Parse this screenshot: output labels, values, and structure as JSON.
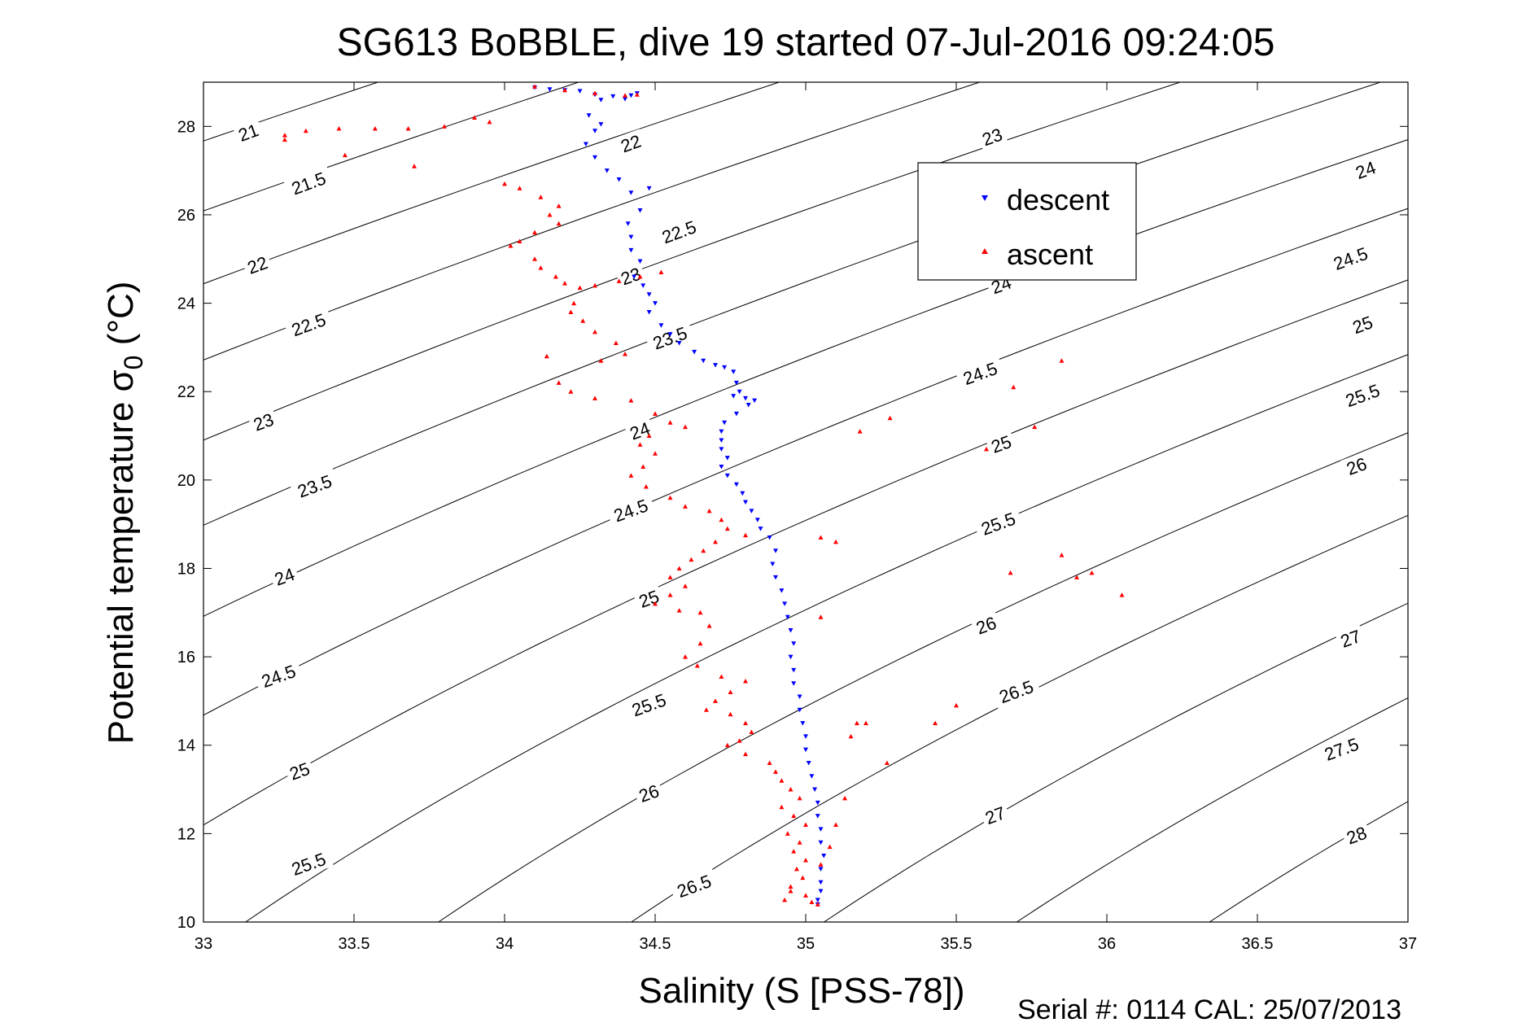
{
  "chart_data": {
    "type": "scatter",
    "title": "SG613 BoBBLE, dive 19 started 07-Jul-2016 09:24:05",
    "xlabel": "Salinity (S [PSS-78])",
    "ylabel": "Potential temperature σ",
    "ylabel_sub": "0",
    "ylabel_unit": " (°C)",
    "xlim": [
      33,
      37
    ],
    "ylim": [
      10,
      29
    ],
    "xticks": [
      33,
      33.5,
      34,
      34.5,
      35,
      35.5,
      36,
      36.5,
      37
    ],
    "xtick_labels": [
      "33",
      "33.5",
      "34",
      "34.5",
      "35",
      "35.5",
      "36",
      "36.5",
      "37"
    ],
    "yticks": [
      10,
      12,
      14,
      16,
      18,
      20,
      22,
      24,
      26,
      28
    ],
    "ytick_labels": [
      "10",
      "12",
      "14",
      "16",
      "18",
      "20",
      "22",
      "24",
      "26",
      "28"
    ],
    "grid": false,
    "legend_placement": "upper-right",
    "density_contours": {
      "levels": [
        21,
        21.5,
        22,
        22.5,
        23,
        23.5,
        24,
        24.5,
        25,
        25.5,
        26,
        26.5,
        27,
        27.5,
        28
      ],
      "labels": [
        {
          "text": "21",
          "s": 33.15,
          "t": 27.85
        },
        {
          "text": "21.5",
          "s": 33.35,
          "t": 26.7
        },
        {
          "text": "22",
          "s": 33.18,
          "t": 24.85
        },
        {
          "text": "22.5",
          "s": 33.35,
          "t": 23.5
        },
        {
          "text": "23",
          "s": 33.2,
          "t": 21.3
        },
        {
          "text": "23.5",
          "s": 33.37,
          "t": 19.85
        },
        {
          "text": "24",
          "s": 33.27,
          "t": 17.8
        },
        {
          "text": "24.5",
          "s": 33.25,
          "t": 15.55
        },
        {
          "text": "25",
          "s": 33.32,
          "t": 13.4
        },
        {
          "text": "25.5",
          "s": 33.35,
          "t": 11.3
        },
        {
          "text": "22",
          "s": 34.42,
          "t": 27.6
        },
        {
          "text": "22.5",
          "s": 34.58,
          "t": 25.6
        },
        {
          "text": "23",
          "s": 34.42,
          "t": 24.6
        },
        {
          "text": "23.5",
          "s": 34.55,
          "t": 23.2
        },
        {
          "text": "24",
          "s": 34.45,
          "t": 21.1
        },
        {
          "text": "24.5",
          "s": 34.42,
          "t": 19.3
        },
        {
          "text": "25",
          "s": 34.48,
          "t": 17.3
        },
        {
          "text": "25.5",
          "s": 34.48,
          "t": 14.9
        },
        {
          "text": "26",
          "s": 34.48,
          "t": 12.9
        },
        {
          "text": "26.5",
          "s": 34.63,
          "t": 10.8
        },
        {
          "text": "23",
          "s": 35.62,
          "t": 27.75
        },
        {
          "text": "24",
          "s": 35.65,
          "t": 24.4
        },
        {
          "text": "24.5",
          "s": 35.58,
          "t": 22.4
        },
        {
          "text": "25",
          "s": 35.65,
          "t": 20.8
        },
        {
          "text": "25.5",
          "s": 35.64,
          "t": 19.0
        },
        {
          "text": "26",
          "s": 35.6,
          "t": 16.7
        },
        {
          "text": "26.5",
          "s": 35.7,
          "t": 15.2
        },
        {
          "text": "27",
          "s": 35.63,
          "t": 12.4
        },
        {
          "text": "24",
          "s": 36.86,
          "t": 27.0
        },
        {
          "text": "24.5",
          "s": 36.81,
          "t": 25.0
        },
        {
          "text": "25",
          "s": 36.85,
          "t": 23.5
        },
        {
          "text": "25.5",
          "s": 36.85,
          "t": 21.9
        },
        {
          "text": "26",
          "s": 36.83,
          "t": 20.3
        },
        {
          "text": "27",
          "s": 36.81,
          "t": 16.4
        },
        {
          "text": "27.5",
          "s": 36.78,
          "t": 13.9
        },
        {
          "text": "28",
          "s": 36.83,
          "t": 11.95
        }
      ]
    },
    "series": [
      {
        "name": "descent",
        "color": "#0000ff",
        "marker": "triangle-down",
        "points": [
          [
            34.44,
            28.75
          ],
          [
            34.42,
            28.7
          ],
          [
            34.36,
            28.68
          ],
          [
            34.3,
            28.72
          ],
          [
            34.25,
            28.8
          ],
          [
            34.2,
            28.82
          ],
          [
            34.15,
            28.84
          ],
          [
            34.1,
            28.88
          ],
          [
            34.32,
            28.6
          ],
          [
            34.4,
            28.62
          ],
          [
            34.28,
            28.25
          ],
          [
            34.32,
            28.05
          ],
          [
            34.3,
            27.9
          ],
          [
            34.27,
            27.6
          ],
          [
            34.3,
            27.3
          ],
          [
            34.34,
            27.0
          ],
          [
            34.38,
            26.8
          ],
          [
            34.42,
            26.5
          ],
          [
            34.48,
            26.6
          ],
          [
            34.45,
            26.1
          ],
          [
            34.41,
            25.8
          ],
          [
            34.42,
            25.5
          ],
          [
            34.42,
            25.2
          ],
          [
            34.45,
            24.95
          ],
          [
            34.43,
            24.6
          ],
          [
            34.46,
            24.4
          ],
          [
            34.48,
            24.2
          ],
          [
            34.5,
            24.0
          ],
          [
            34.48,
            23.8
          ],
          [
            34.52,
            23.5
          ],
          [
            34.55,
            23.3
          ],
          [
            34.58,
            23.1
          ],
          [
            34.63,
            22.9
          ],
          [
            34.66,
            22.7
          ],
          [
            34.7,
            22.6
          ],
          [
            34.73,
            22.55
          ],
          [
            34.76,
            22.45
          ],
          [
            34.77,
            22.2
          ],
          [
            34.78,
            22.0
          ],
          [
            34.76,
            21.9
          ],
          [
            34.8,
            21.85
          ],
          [
            34.83,
            21.8
          ],
          [
            34.81,
            21.7
          ],
          [
            34.77,
            21.5
          ],
          [
            34.73,
            21.3
          ],
          [
            34.72,
            21.1
          ],
          [
            34.72,
            20.9
          ],
          [
            34.72,
            20.7
          ],
          [
            34.74,
            20.5
          ],
          [
            34.72,
            20.3
          ],
          [
            34.74,
            20.1
          ],
          [
            34.77,
            19.9
          ],
          [
            34.79,
            19.7
          ],
          [
            34.8,
            19.5
          ],
          [
            34.82,
            19.3
          ],
          [
            34.84,
            19.1
          ],
          [
            34.85,
            18.9
          ],
          [
            34.88,
            18.7
          ],
          [
            34.9,
            18.4
          ],
          [
            34.89,
            18.1
          ],
          [
            34.9,
            17.8
          ],
          [
            34.92,
            17.5
          ],
          [
            34.93,
            17.2
          ],
          [
            34.94,
            16.9
          ],
          [
            34.95,
            16.6
          ],
          [
            34.96,
            16.3
          ],
          [
            34.95,
            16.0
          ],
          [
            34.96,
            15.7
          ],
          [
            34.96,
            15.4
          ],
          [
            34.98,
            15.1
          ],
          [
            34.98,
            14.8
          ],
          [
            34.99,
            14.5
          ],
          [
            35.0,
            14.2
          ],
          [
            35.0,
            13.9
          ],
          [
            35.01,
            13.6
          ],
          [
            35.02,
            13.3
          ],
          [
            35.03,
            13.0
          ],
          [
            35.04,
            12.7
          ],
          [
            35.04,
            12.4
          ],
          [
            35.05,
            12.1
          ],
          [
            35.05,
            11.8
          ],
          [
            35.06,
            11.5
          ],
          [
            35.05,
            11.2
          ],
          [
            35.05,
            10.9
          ],
          [
            35.05,
            10.7
          ],
          [
            35.04,
            10.5
          ],
          [
            35.04,
            10.4
          ]
        ]
      },
      {
        "name": "ascent",
        "color": "#ff0000",
        "marker": "triangle-up",
        "points": [
          [
            34.1,
            28.9
          ],
          [
            34.2,
            28.82
          ],
          [
            34.3,
            28.75
          ],
          [
            34.4,
            28.7
          ],
          [
            34.44,
            28.72
          ],
          [
            33.9,
            28.2
          ],
          [
            33.95,
            28.1
          ],
          [
            33.8,
            28.0
          ],
          [
            33.68,
            27.95
          ],
          [
            33.57,
            27.95
          ],
          [
            33.45,
            27.95
          ],
          [
            33.34,
            27.9
          ],
          [
            33.27,
            27.8
          ],
          [
            33.27,
            27.7
          ],
          [
            33.47,
            27.35
          ],
          [
            33.7,
            27.1
          ],
          [
            34.0,
            26.7
          ],
          [
            34.05,
            26.6
          ],
          [
            34.12,
            26.4
          ],
          [
            34.18,
            26.2
          ],
          [
            34.15,
            26.0
          ],
          [
            34.18,
            25.8
          ],
          [
            34.1,
            25.6
          ],
          [
            34.05,
            25.4
          ],
          [
            34.02,
            25.3
          ],
          [
            34.1,
            25.0
          ],
          [
            34.12,
            24.8
          ],
          [
            34.17,
            24.6
          ],
          [
            34.2,
            24.45
          ],
          [
            34.25,
            24.35
          ],
          [
            34.3,
            24.4
          ],
          [
            34.38,
            24.5
          ],
          [
            34.45,
            24.6
          ],
          [
            34.52,
            24.7
          ],
          [
            34.23,
            24.0
          ],
          [
            34.22,
            23.8
          ],
          [
            34.26,
            23.6
          ],
          [
            34.3,
            23.35
          ],
          [
            34.37,
            23.1
          ],
          [
            34.4,
            22.85
          ],
          [
            34.32,
            22.7
          ],
          [
            34.14,
            22.8
          ],
          [
            34.18,
            22.2
          ],
          [
            34.22,
            22.0
          ],
          [
            34.3,
            21.85
          ],
          [
            34.42,
            21.8
          ],
          [
            34.5,
            21.5
          ],
          [
            34.55,
            21.3
          ],
          [
            34.6,
            21.2
          ],
          [
            34.48,
            21.0
          ],
          [
            34.45,
            20.8
          ],
          [
            34.5,
            20.6
          ],
          [
            34.46,
            20.3
          ],
          [
            34.42,
            20.1
          ],
          [
            34.47,
            19.85
          ],
          [
            34.55,
            19.6
          ],
          [
            34.6,
            19.4
          ],
          [
            34.68,
            19.3
          ],
          [
            34.72,
            19.1
          ],
          [
            34.74,
            18.9
          ],
          [
            34.8,
            18.75
          ],
          [
            34.7,
            18.6
          ],
          [
            34.66,
            18.4
          ],
          [
            34.62,
            18.2
          ],
          [
            34.58,
            18.0
          ],
          [
            34.55,
            17.8
          ],
          [
            34.6,
            17.6
          ],
          [
            34.55,
            17.4
          ],
          [
            34.5,
            17.2
          ],
          [
            34.58,
            17.05
          ],
          [
            34.65,
            17.0
          ],
          [
            34.68,
            16.7
          ],
          [
            34.65,
            16.3
          ],
          [
            34.6,
            16.0
          ],
          [
            34.64,
            15.8
          ],
          [
            34.72,
            15.55
          ],
          [
            34.8,
            15.45
          ],
          [
            34.75,
            15.2
          ],
          [
            34.7,
            15.0
          ],
          [
            34.67,
            14.8
          ],
          [
            34.75,
            14.7
          ],
          [
            34.8,
            14.5
          ],
          [
            34.82,
            14.3
          ],
          [
            34.78,
            14.1
          ],
          [
            34.74,
            14.0
          ],
          [
            34.8,
            13.8
          ],
          [
            34.88,
            13.6
          ],
          [
            34.9,
            13.4
          ],
          [
            34.92,
            13.2
          ],
          [
            34.95,
            13.0
          ],
          [
            34.98,
            12.8
          ],
          [
            34.92,
            12.6
          ],
          [
            34.96,
            12.4
          ],
          [
            35.0,
            12.2
          ],
          [
            34.94,
            12.0
          ],
          [
            34.98,
            11.8
          ],
          [
            34.96,
            11.6
          ],
          [
            35.0,
            11.4
          ],
          [
            34.97,
            11.2
          ],
          [
            34.99,
            11.0
          ],
          [
            34.95,
            10.8
          ],
          [
            35.0,
            10.6
          ],
          [
            35.02,
            10.45
          ],
          [
            35.04,
            10.4
          ],
          [
            34.93,
            10.5
          ],
          [
            34.95,
            10.7
          ],
          [
            35.05,
            11.3
          ],
          [
            35.08,
            11.7
          ],
          [
            35.1,
            12.2
          ],
          [
            35.13,
            12.8
          ],
          [
            35.17,
            14.5
          ],
          [
            35.2,
            14.5
          ],
          [
            35.27,
            13.6
          ],
          [
            35.15,
            14.2
          ],
          [
            35.5,
            14.9
          ],
          [
            35.43,
            14.5
          ],
          [
            35.69,
            22.1
          ],
          [
            35.76,
            21.2
          ],
          [
            35.85,
            22.7
          ],
          [
            35.6,
            20.7
          ],
          [
            35.85,
            18.3
          ],
          [
            35.95,
            17.9
          ],
          [
            35.68,
            17.9
          ],
          [
            35.05,
            16.9
          ],
          [
            35.1,
            18.6
          ],
          [
            35.05,
            18.7
          ],
          [
            35.9,
            17.8
          ],
          [
            36.05,
            17.4
          ],
          [
            35.28,
            21.4
          ],
          [
            35.18,
            21.1
          ]
        ]
      }
    ]
  },
  "footer_text": "Serial #: 0114  CAL: 25/07/2013"
}
